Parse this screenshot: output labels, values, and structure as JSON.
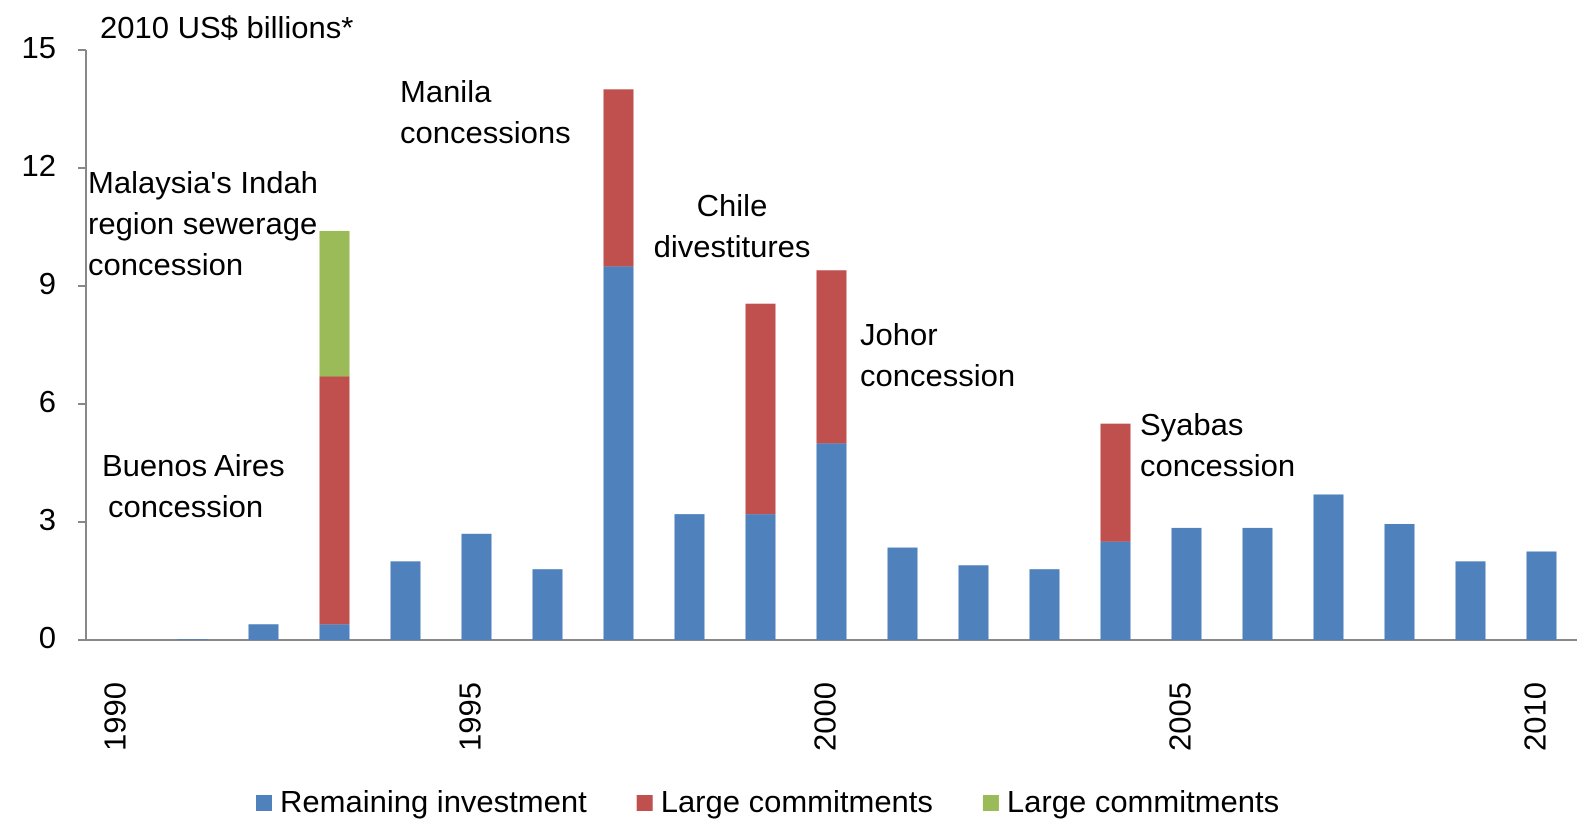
{
  "chart_data": {
    "type": "bar",
    "stacked": true,
    "y_label": "2010 US$  billions*",
    "categories": [
      "1990",
      null,
      null,
      null,
      null,
      "1995",
      null,
      null,
      null,
      null,
      "2000",
      null,
      null,
      null,
      null,
      "2005",
      null,
      null,
      null,
      null,
      "2010"
    ],
    "series": [
      {
        "name": "Remaining investment",
        "color": "#4f81bd",
        "values": [
          0,
          0.02,
          0.4,
          0.4,
          2.0,
          2.7,
          1.8,
          9.5,
          3.2,
          3.2,
          5.0,
          2.35,
          1.9,
          1.8,
          2.5,
          2.85,
          2.85,
          3.7,
          2.95,
          2.0,
          2.25
        ]
      },
      {
        "name": "Large commitments",
        "color": "#c0504d",
        "values": [
          0,
          0,
          0,
          6.3,
          0,
          0,
          0,
          4.5,
          0,
          5.35,
          4.4,
          0,
          0,
          0,
          3.0,
          0,
          0,
          0,
          0,
          0,
          0
        ]
      },
      {
        "name": "Large commitments",
        "color": "#9bbb59",
        "values": [
          0,
          0,
          0,
          3.7,
          0,
          0,
          0,
          0,
          0,
          0,
          0,
          0,
          0,
          0,
          0,
          0,
          0,
          0,
          0,
          0,
          0
        ]
      }
    ],
    "annotations": [
      [
        "Buenos Aires",
        "concession"
      ],
      [
        "Malaysia's Indah",
        "region sewerage",
        "concession"
      ],
      [
        "Manila",
        "concessions"
      ],
      [
        "Chile",
        "divestitures"
      ],
      [
        "Johor",
        "concession"
      ],
      [
        "Syabas",
        "concession"
      ]
    ],
    "ylim": [
      0,
      15
    ],
    "yticks": [
      0,
      3,
      6,
      9,
      12,
      15
    ],
    "grid": false
  }
}
